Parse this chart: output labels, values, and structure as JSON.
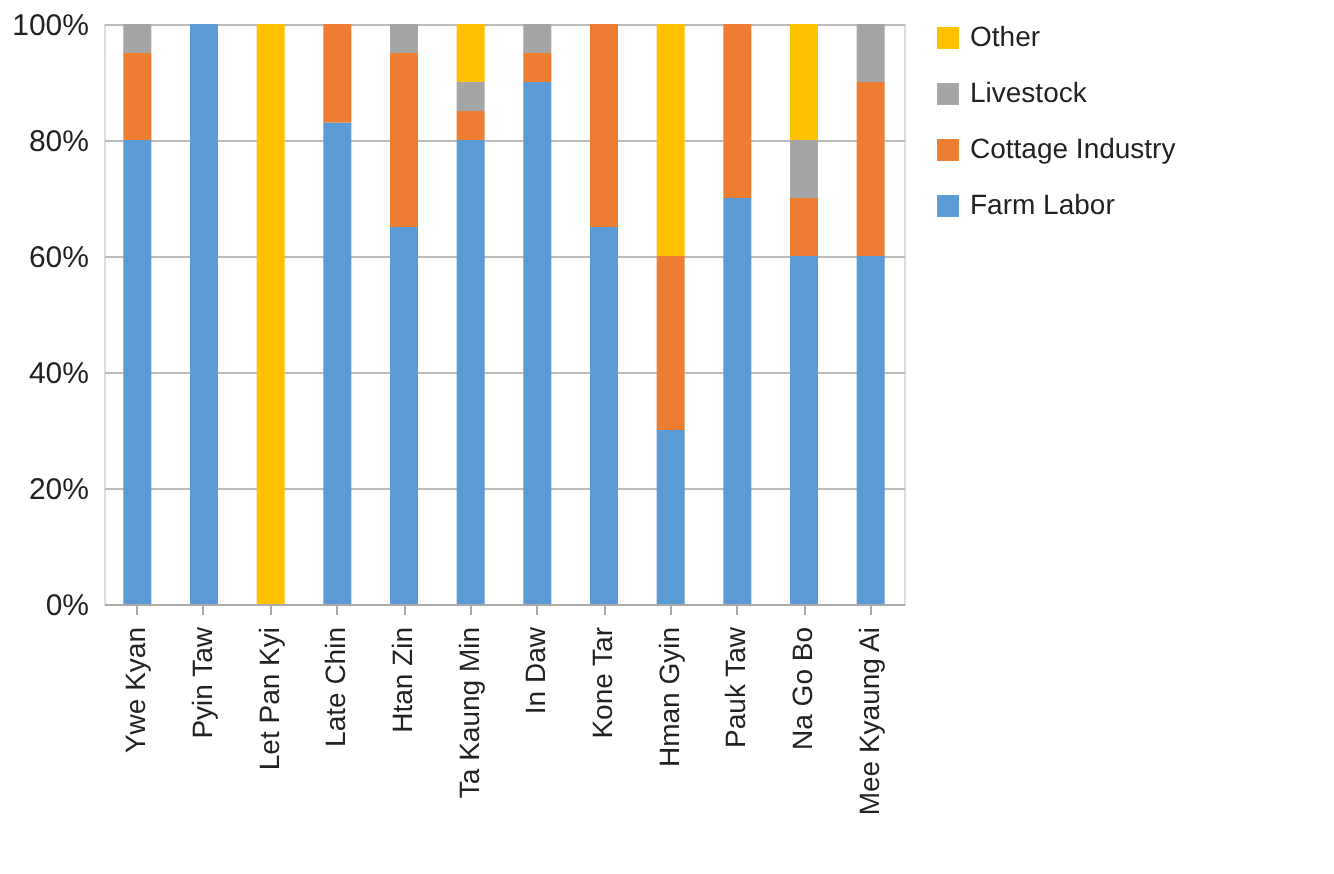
{
  "chart_data": {
    "type": "bar",
    "stacked": true,
    "categories": [
      "Ywe Kyan",
      "Pyin Taw",
      "Let Pan Kyi",
      "Late Chin",
      "Htan Zin",
      "Ta Kaung Min",
      "In Daw",
      "Kone Tar",
      "Hman Gyin",
      "Pauk Taw",
      "Na Go Bo",
      "Mee Kyaung Ai"
    ],
    "series": [
      {
        "name": "Farm Labor",
        "color": "#5b9bd5",
        "values": [
          80,
          100,
          0,
          83,
          65,
          80,
          90,
          65,
          30,
          70,
          60,
          60
        ]
      },
      {
        "name": "Cottage Industry",
        "color": "#ed7d31",
        "values": [
          15,
          0,
          0,
          17,
          30,
          5,
          5,
          35,
          30,
          30,
          10,
          30
        ]
      },
      {
        "name": "Livestock",
        "color": "#a5a5a5",
        "values": [
          5,
          0,
          0,
          0,
          5,
          5,
          5,
          0,
          0,
          0,
          10,
          10
        ]
      },
      {
        "name": "Other",
        "color": "#ffc000",
        "values": [
          0,
          0,
          100,
          0,
          0,
          10,
          0,
          0,
          40,
          0,
          20,
          0
        ]
      }
    ],
    "ylim": [
      0,
      100
    ],
    "yticks": [
      {
        "value": 0,
        "label": "0%"
      },
      {
        "value": 20,
        "label": "20%"
      },
      {
        "value": 40,
        "label": "40%"
      },
      {
        "value": 60,
        "label": "60%"
      },
      {
        "value": 80,
        "label": "80%"
      },
      {
        "value": 100,
        "label": "100%"
      }
    ],
    "grid": "y",
    "legend": "right"
  }
}
